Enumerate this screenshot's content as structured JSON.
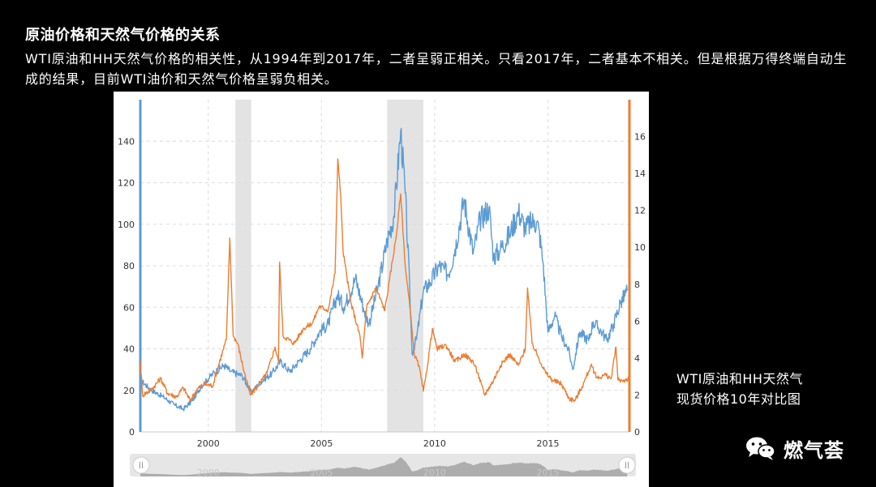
{
  "title": "原油价格和天然气价格的关系",
  "description": "WTI原油和HH天然气价格的相关性，从1994年到2017年，二者呈弱正相关。只看2017年，二者基本不相关。但是根据万得终端自动生成的结果，目前WTI油价和天然气价格呈弱负相关。",
  "caption": {
    "line1": "WTI原油和HH天然气",
    "line2": "现货价格10年对比图"
  },
  "brand": {
    "name": "燃气荟",
    "icon": "wechat-icon"
  },
  "chart_data": {
    "type": "line",
    "x_ticks": [
      2000,
      2005,
      2010,
      2015
    ],
    "xlim": [
      1997.0,
      2018.6
    ],
    "y_left": {
      "lim": [
        0,
        160
      ],
      "ticks": [
        0,
        20,
        40,
        60,
        80,
        100,
        120,
        140
      ],
      "color": "#5b9bd5"
    },
    "y_right": {
      "lim": [
        0,
        18
      ],
      "ticks": [
        0,
        2,
        4,
        6,
        8,
        10,
        12,
        14,
        16
      ],
      "color": "#ed7d31"
    },
    "recessions": [
      [
        2001.2,
        2001.9
      ],
      [
        2007.9,
        2009.5
      ]
    ],
    "grid": true,
    "series": [
      {
        "axis": "left",
        "color": "#5b9bd5",
        "points": [
          [
            1997.0,
            25
          ],
          [
            1997.5,
            20
          ],
          [
            1998.0,
            17
          ],
          [
            1998.5,
            13
          ],
          [
            1998.9,
            11
          ],
          [
            1999.3,
            15
          ],
          [
            1999.7,
            22
          ],
          [
            2000.2,
            28
          ],
          [
            2000.7,
            32
          ],
          [
            2001.0,
            29
          ],
          [
            2001.5,
            27
          ],
          [
            2001.9,
            19
          ],
          [
            2002.3,
            24
          ],
          [
            2002.8,
            28
          ],
          [
            2003.2,
            34
          ],
          [
            2003.6,
            29
          ],
          [
            2004.0,
            34
          ],
          [
            2004.5,
            40
          ],
          [
            2004.9,
            48
          ],
          [
            2005.3,
            52
          ],
          [
            2005.7,
            66
          ],
          [
            2006.0,
            60
          ],
          [
            2006.5,
            74
          ],
          [
            2006.9,
            58
          ],
          [
            2007.1,
            52
          ],
          [
            2007.5,
            70
          ],
          [
            2007.9,
            92
          ],
          [
            2008.2,
            104
          ],
          [
            2008.5,
            145
          ],
          [
            2008.7,
            115
          ],
          [
            2008.9,
            68
          ],
          [
            2009.0,
            38
          ],
          [
            2009.2,
            45
          ],
          [
            2009.5,
            68
          ],
          [
            2009.8,
            72
          ],
          [
            2010.2,
            80
          ],
          [
            2010.6,
            76
          ],
          [
            2010.9,
            88
          ],
          [
            2011.3,
            112
          ],
          [
            2011.7,
            86
          ],
          [
            2012.0,
            102
          ],
          [
            2012.4,
            108
          ],
          [
            2012.6,
            84
          ],
          [
            2012.9,
            88
          ],
          [
            2013.3,
            95
          ],
          [
            2013.7,
            106
          ],
          [
            2014.0,
            98
          ],
          [
            2014.4,
            102
          ],
          [
            2014.6,
            98
          ],
          [
            2014.8,
            80
          ],
          [
            2015.0,
            48
          ],
          [
            2015.3,
            56
          ],
          [
            2015.6,
            46
          ],
          [
            2015.9,
            40
          ],
          [
            2016.1,
            30
          ],
          [
            2016.4,
            48
          ],
          [
            2016.8,
            44
          ],
          [
            2017.0,
            53
          ],
          [
            2017.4,
            48
          ],
          [
            2017.6,
            44
          ],
          [
            2017.9,
            52
          ],
          [
            2018.2,
            62
          ],
          [
            2018.5,
            68
          ]
        ]
      },
      {
        "axis": "right",
        "color": "#ed7d31",
        "points": [
          [
            1997.0,
            3.8
          ],
          [
            1997.1,
            2.0
          ],
          [
            1997.5,
            2.3
          ],
          [
            1997.9,
            2.9
          ],
          [
            1998.2,
            2.1
          ],
          [
            1998.6,
            1.9
          ],
          [
            1998.9,
            2.4
          ],
          [
            1999.2,
            1.7
          ],
          [
            1999.5,
            2.3
          ],
          [
            1999.8,
            2.6
          ],
          [
            2000.2,
            2.5
          ],
          [
            2000.5,
            3.8
          ],
          [
            2000.8,
            5.0
          ],
          [
            2000.95,
            10.5
          ],
          [
            2001.1,
            5.2
          ],
          [
            2001.3,
            4.8
          ],
          [
            2001.6,
            3.2
          ],
          [
            2001.85,
            2.0
          ],
          [
            2002.2,
            2.5
          ],
          [
            2002.6,
            3.2
          ],
          [
            2002.95,
            4.6
          ],
          [
            2003.1,
            3.8
          ],
          [
            2003.15,
            9.2
          ],
          [
            2003.3,
            5.2
          ],
          [
            2003.8,
            4.8
          ],
          [
            2004.2,
            5.6
          ],
          [
            2004.6,
            5.9
          ],
          [
            2004.9,
            6.8
          ],
          [
            2005.3,
            6.6
          ],
          [
            2005.6,
            8.6
          ],
          [
            2005.72,
            14.8
          ],
          [
            2005.85,
            12.8
          ],
          [
            2005.95,
            9.8
          ],
          [
            2006.3,
            7.0
          ],
          [
            2006.7,
            5.2
          ],
          [
            2006.8,
            4.0
          ],
          [
            2007.0,
            6.8
          ],
          [
            2007.4,
            7.8
          ],
          [
            2007.8,
            6.6
          ],
          [
            2008.0,
            8.2
          ],
          [
            2008.3,
            10.6
          ],
          [
            2008.5,
            12.9
          ],
          [
            2008.7,
            9.0
          ],
          [
            2008.9,
            6.8
          ],
          [
            2009.1,
            4.2
          ],
          [
            2009.3,
            3.6
          ],
          [
            2009.5,
            2.2
          ],
          [
            2009.6,
            2.9
          ],
          [
            2009.9,
            5.6
          ],
          [
            2010.1,
            4.5
          ],
          [
            2010.5,
            4.7
          ],
          [
            2010.9,
            3.8
          ],
          [
            2011.3,
            4.2
          ],
          [
            2011.7,
            3.8
          ],
          [
            2011.9,
            3.2
          ],
          [
            2012.2,
            2.0
          ],
          [
            2012.6,
            2.8
          ],
          [
            2012.9,
            3.6
          ],
          [
            2013.3,
            4.2
          ],
          [
            2013.7,
            3.6
          ],
          [
            2014.0,
            4.5
          ],
          [
            2014.1,
            7.8
          ],
          [
            2014.3,
            4.8
          ],
          [
            2014.6,
            4.0
          ],
          [
            2014.9,
            3.2
          ],
          [
            2015.2,
            2.8
          ],
          [
            2015.6,
            2.6
          ],
          [
            2015.95,
            1.8
          ],
          [
            2016.2,
            1.7
          ],
          [
            2016.6,
            2.7
          ],
          [
            2016.9,
            3.6
          ],
          [
            2017.2,
            2.9
          ],
          [
            2017.5,
            3.1
          ],
          [
            2017.8,
            2.9
          ],
          [
            2018.0,
            4.6
          ],
          [
            2018.1,
            2.8
          ],
          [
            2018.4,
            2.8
          ],
          [
            2018.6,
            2.9
          ]
        ]
      }
    ]
  }
}
